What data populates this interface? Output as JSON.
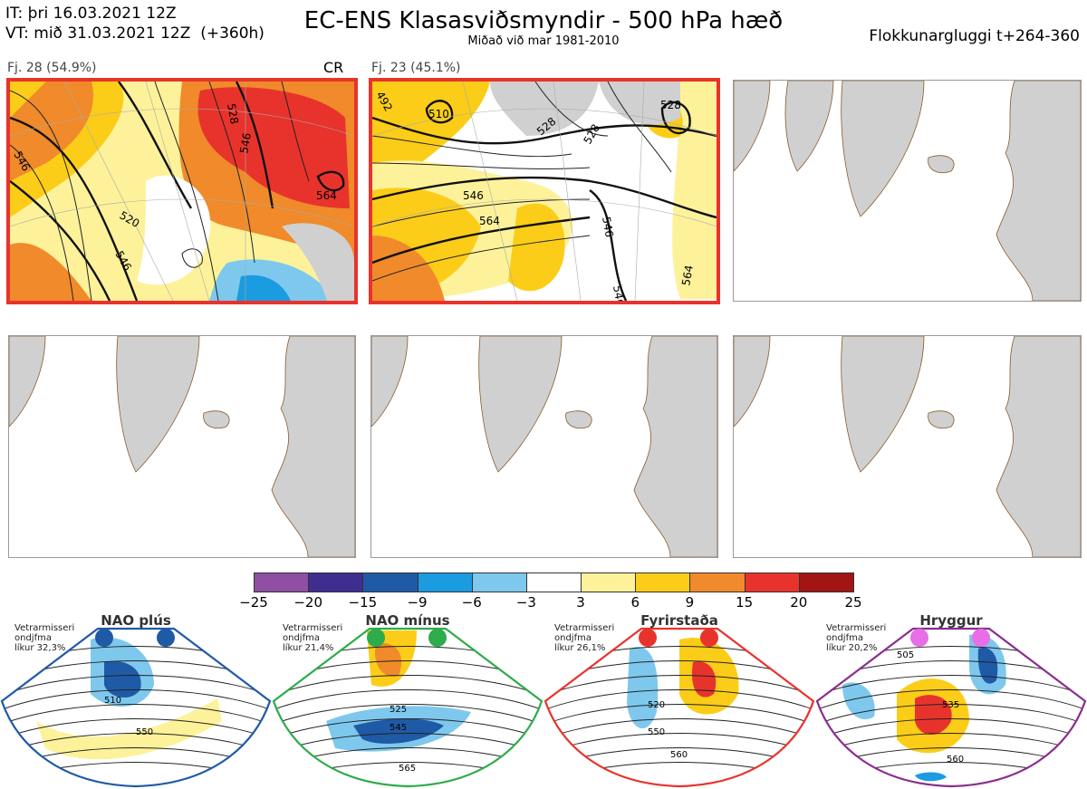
{
  "header": {
    "it_line": "IT: þri 16.03.2021 12Z",
    "vt_line": "VT: mið 31.03.2021 12Z  (+360h)",
    "title": "EC-ENS Klasasviðsmyndir - 500 hPa hæð",
    "subtitle": "Miðað við mar 1981-2010",
    "window": "Flokkunargluggi t+264-360"
  },
  "clusters": [
    {
      "label": "Fj. 28 (54.9%)",
      "tag": "CR",
      "contours": [
        "528",
        "546",
        "564",
        "546",
        "520",
        "546",
        "546",
        "528"
      ]
    },
    {
      "label": "Fj. 23 (45.1%)",
      "tag": "",
      "contours": [
        "492",
        "510",
        "528",
        "546",
        "528",
        "564",
        "546",
        "546",
        "564",
        "528",
        "510"
      ]
    }
  ],
  "colorbar": {
    "ticks": [
      "−25",
      "−20",
      "−15",
      "−9",
      "−6",
      "−3",
      "3",
      "6",
      "9",
      "15",
      "20",
      "25"
    ],
    "colors": [
      "#8f4fa3",
      "#3f2e8f",
      "#1f5aa6",
      "#1b9be0",
      "#7ec8ee",
      "#ffffff",
      "#fdf29a",
      "#fbcd18",
      "#f08a2a",
      "#e8332c",
      "#a31515"
    ]
  },
  "regimes": [
    {
      "name": "NAO plús",
      "note": [
        "Vetrarmisseri",
        "ondjfma",
        "líkur 32,3%"
      ],
      "color": "#1f5aa6",
      "contours": [
        "510",
        "550"
      ]
    },
    {
      "name": "NAO mínus",
      "note": [
        "Vetrarmisseri",
        "ondjfma",
        "líkur 21,4%"
      ],
      "color": "#2eab4a",
      "contours": [
        "525",
        "545",
        "565"
      ]
    },
    {
      "name": "Fyrirstaða",
      "note": [
        "Vetrarmisseri",
        "ondjfma",
        "líkur 26,1%"
      ],
      "color": "#e8332c",
      "contours": [
        "520",
        "550",
        "560"
      ]
    },
    {
      "name": "Hryggur",
      "note": [
        "Vetrarmisseri",
        "ondjfma",
        "líkur 20,2%"
      ],
      "color": "#8b2d8f",
      "contours": [
        "505",
        "535",
        "560"
      ]
    }
  ]
}
